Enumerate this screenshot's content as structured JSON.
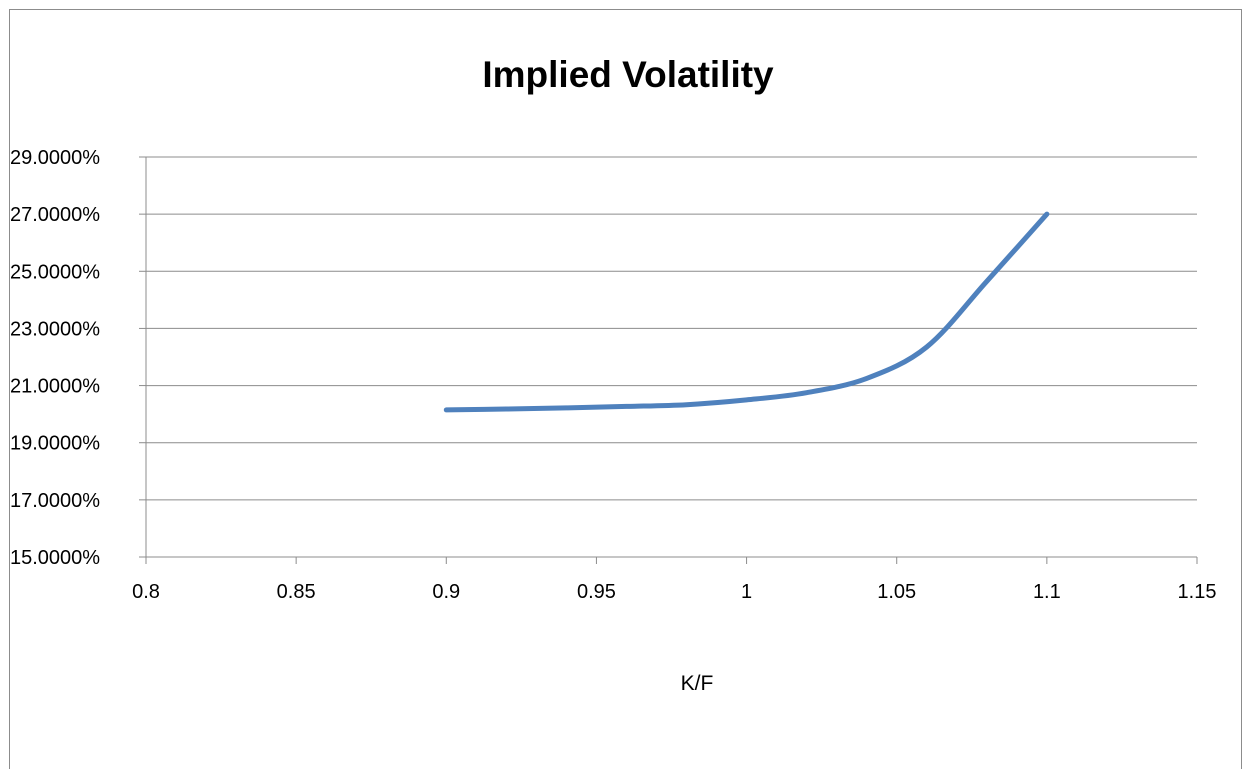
{
  "chart_data": {
    "type": "line",
    "title": "Implied Volatility",
    "xlabel": "K/F",
    "ylabel": "",
    "xlim": [
      0.8,
      1.15
    ],
    "ylim": [
      0.15,
      0.29
    ],
    "x_ticks": [
      "0.8",
      "0.85",
      "0.9",
      "0.95",
      "1",
      "1.05",
      "1.1",
      "1.15"
    ],
    "y_ticks": [
      "15.0000%",
      "17.0000%",
      "19.0000%",
      "21.0000%",
      "23.0000%",
      "25.0000%",
      "27.0000%",
      "29.0000%"
    ],
    "grid": "horizontal",
    "legend": "none",
    "series": [
      {
        "color": "#4f81bd",
        "x": [
          0.9,
          0.92,
          0.94,
          0.96,
          0.98,
          1.0,
          1.02,
          1.04,
          1.06,
          1.08,
          1.1
        ],
        "y": [
          0.2015,
          0.2018,
          0.2022,
          0.2027,
          0.2033,
          0.205,
          0.2075,
          0.2125,
          0.2235,
          0.2465,
          0.27
        ]
      }
    ]
  }
}
